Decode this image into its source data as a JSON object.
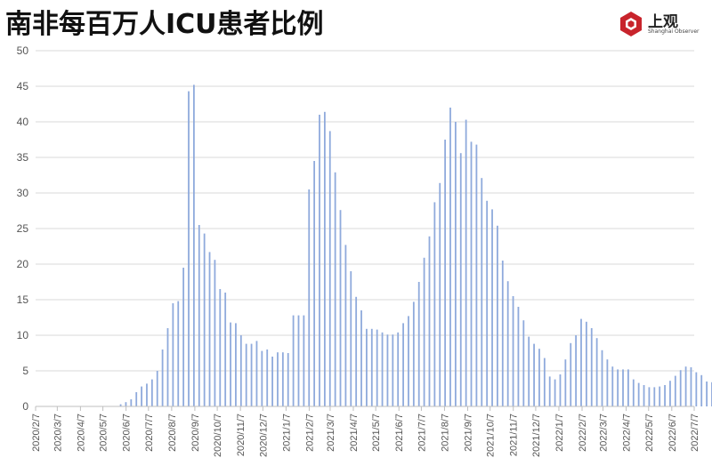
{
  "chart_data": {
    "type": "bar",
    "title": "南非每百万人ICU患者比例",
    "xlabel": "",
    "ylabel": "",
    "ylim": [
      0,
      50
    ],
    "yticks": [
      0,
      5,
      10,
      15,
      20,
      25,
      30,
      35,
      40,
      45,
      50
    ],
    "grid": "horizontal",
    "legend": "none",
    "bar_color": "#8FAADC",
    "x_tick_labels": [
      "2020/2/7",
      "2020/3/7",
      "2020/4/7",
      "2020/5/7",
      "2020/6/7",
      "2020/7/7",
      "2020/8/7",
      "2020/9/7",
      "2020/10/7",
      "2020/11/7",
      "2020/12/7",
      "2021/1/7",
      "2021/2/7",
      "2021/3/7",
      "2021/4/7",
      "2021/5/7",
      "2021/6/7",
      "2021/7/7",
      "2021/8/7",
      "2021/9/7",
      "2021/10/7",
      "2021/11/7",
      "2021/12/7",
      "2022/1/7",
      "2022/2/7",
      "2022/3/7",
      "2022/4/7",
      "2022/5/7",
      "2022/6/7",
      "2022/7/7"
    ],
    "start_date": "2020/2/7",
    "interval_days": 7,
    "values": [
      0,
      0,
      0,
      0,
      0,
      0,
      0,
      0,
      0,
      0,
      0,
      0,
      0,
      0,
      0,
      0,
      0.3,
      0.6,
      1.0,
      2.0,
      2.8,
      3.2,
      3.8,
      5.0,
      8.0,
      11.0,
      14.5,
      14.8,
      19.5,
      44.3,
      45.2,
      25.5,
      24.3,
      21.7,
      20.6,
      16.5,
      16.0,
      11.8,
      11.7,
      10.0,
      8.8,
      8.8,
      9.2,
      7.8,
      8.0,
      7.0,
      7.6,
      7.6,
      7.5,
      12.8,
      12.8,
      12.8,
      30.5,
      34.5,
      41.0,
      41.4,
      38.7,
      32.9,
      27.6,
      22.7,
      19.0,
      15.4,
      13.5,
      10.9,
      10.9,
      10.8,
      10.4,
      10.1,
      10.1,
      10.4,
      11.7,
      12.7,
      14.7,
      17.5,
      20.9,
      23.9,
      28.7,
      31.4,
      37.5,
      42.0,
      40.0,
      35.6,
      40.3,
      37.2,
      36.8,
      32.1,
      28.9,
      27.7,
      25.4,
      20.5,
      17.6,
      15.5,
      14.0,
      12.1,
      9.8,
      8.8,
      8.1,
      6.8,
      4.2,
      3.8,
      4.5,
      6.6,
      8.9,
      10.0,
      12.3,
      11.9,
      11.0,
      9.6,
      7.9,
      6.6,
      5.6,
      5.2,
      5.2,
      5.2,
      3.8,
      3.3,
      3.0,
      2.7,
      2.7,
      2.8,
      3.0,
      3.6,
      4.3,
      5.1,
      5.6,
      5.5,
      4.8,
      4.4,
      3.5,
      3.4
    ]
  },
  "logo": {
    "name": "上观",
    "subtitle": "Shanghai Observer",
    "color": "#C8242C"
  }
}
